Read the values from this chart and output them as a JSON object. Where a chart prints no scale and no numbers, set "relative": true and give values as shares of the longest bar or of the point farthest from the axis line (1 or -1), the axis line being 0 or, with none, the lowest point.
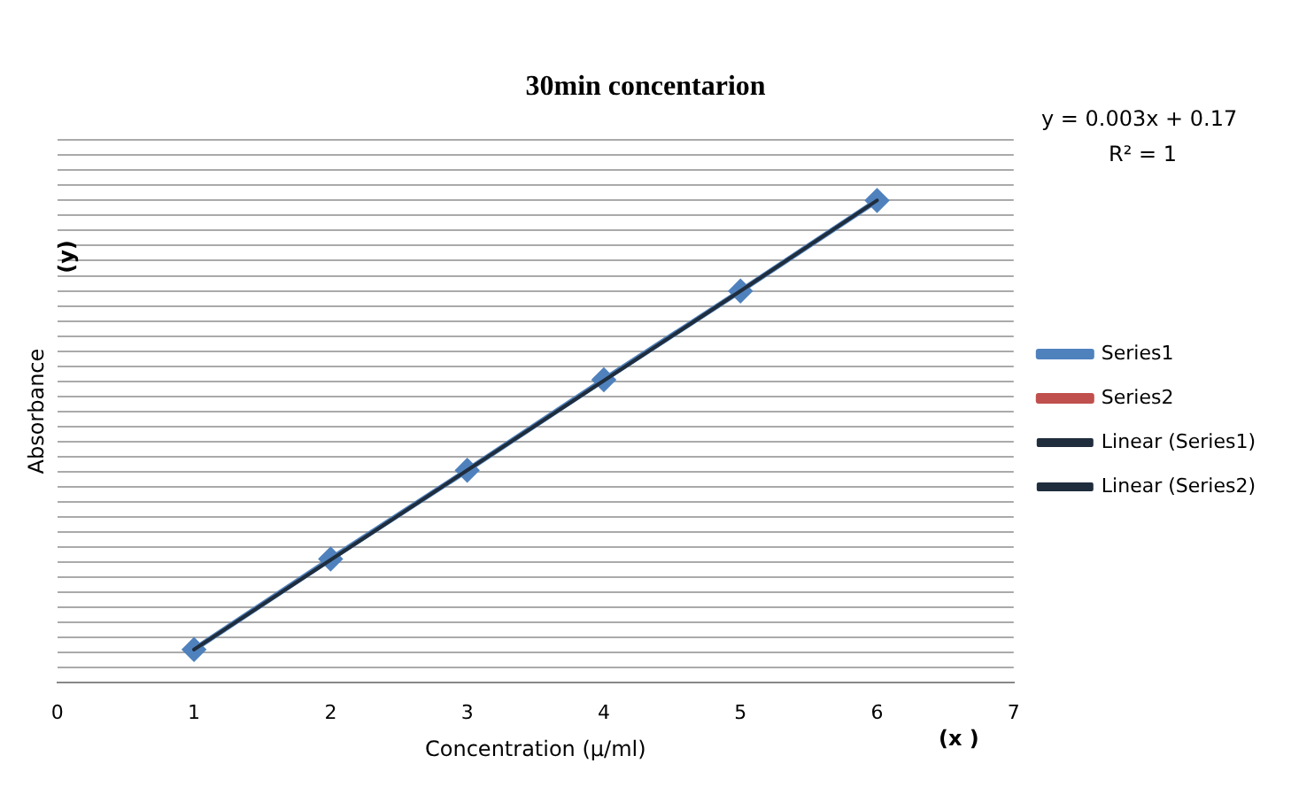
{
  "chart_data": {
    "type": "line",
    "title": "30min concentarion",
    "xlabel": "Concentration (µ/ml)",
    "ylabel": "Absorbance",
    "annotations": [
      "(y)",
      "(x )",
      "y = 0.003x + 0.17",
      "R² = 1"
    ],
    "x": [
      1,
      2,
      3,
      4,
      5,
      6
    ],
    "xlim": [
      0,
      7
    ],
    "xticks": [
      0,
      1,
      2,
      3,
      4,
      5,
      6,
      7
    ],
    "relative": true,
    "grid": "y",
    "legend": "right",
    "series": [
      {
        "name": "Series1",
        "color": "#4f81bd",
        "marker": "diamond",
        "values": [
          0.068,
          0.256,
          0.44,
          0.628,
          0.812,
          1
        ]
      },
      {
        "name": "Series2",
        "color": "#c0504d",
        "marker": "square",
        "values": [
          null,
          null,
          null,
          null,
          null,
          null
        ]
      },
      {
        "name": "Linear (Series1)",
        "type": "line",
        "color": "#1f2d3d",
        "marker": "none",
        "values": [
          0.068,
          0.254,
          0.44,
          0.626,
          0.812,
          1
        ]
      },
      {
        "name": "Linear (Series2)",
        "type": "line",
        "color": "#1f2d3d",
        "marker": "none",
        "values": [
          null,
          null,
          null,
          null,
          null,
          null
        ]
      }
    ]
  }
}
